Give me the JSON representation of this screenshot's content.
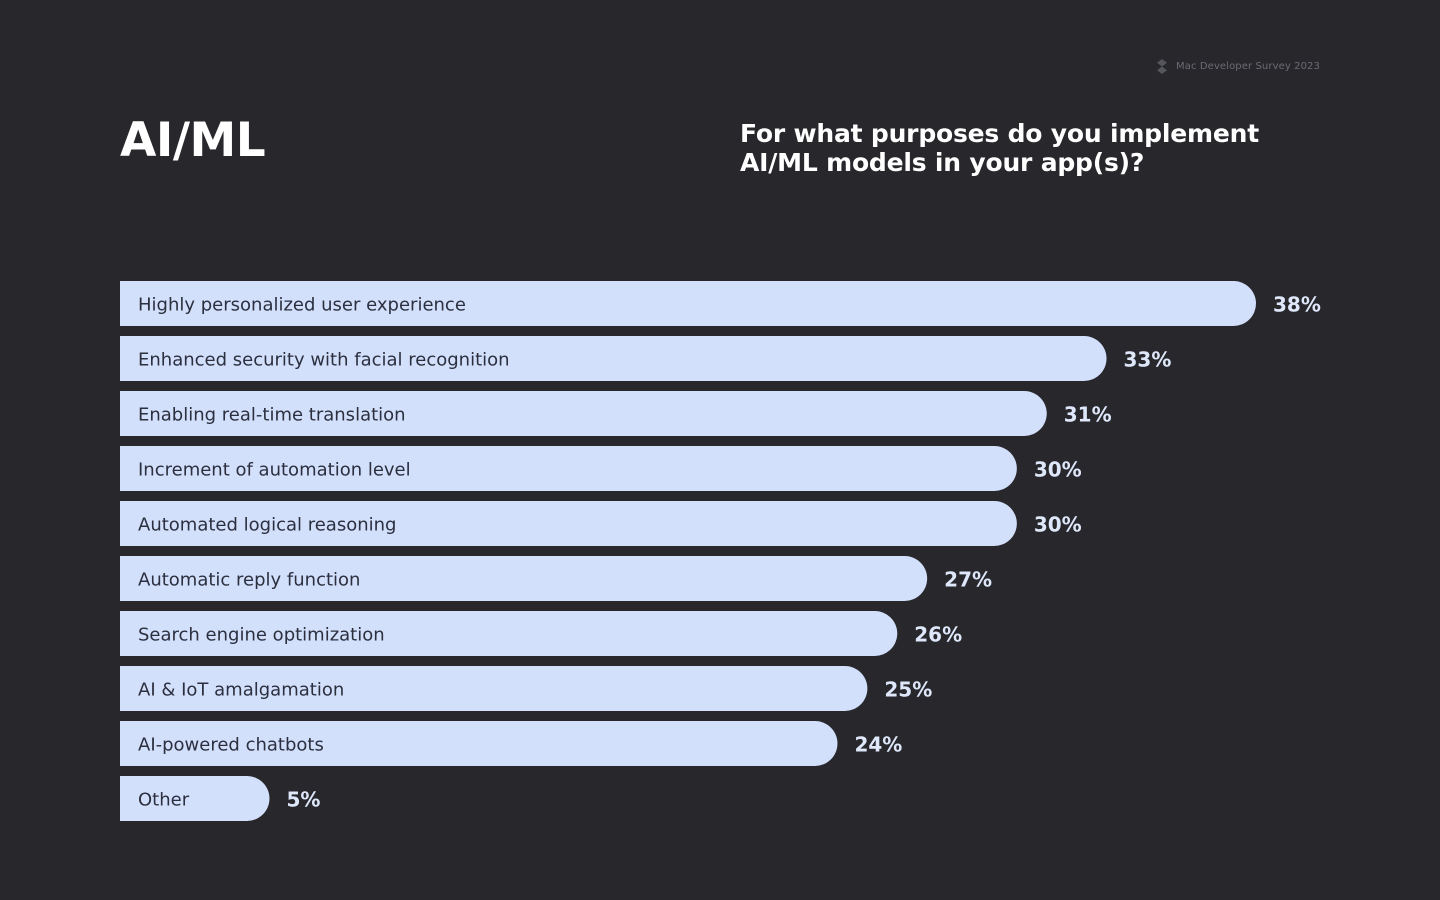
{
  "brand": {
    "text": "Mac Developer Survey 2023",
    "icon": "survey-logo-icon"
  },
  "section_title": "AI/ML",
  "question": "For what purposes do you implement AI/ML models in your app(s)?",
  "colors": {
    "background": "#27272c",
    "bar": "#d3e0fc",
    "bar_text": "#2b2f3e",
    "value_text": "#dfe8fb"
  },
  "chart_data": {
    "type": "bar",
    "orientation": "horizontal",
    "title": "For what purposes do you implement AI/ML models in your app(s)?",
    "xlabel": "",
    "ylabel": "",
    "xlim": [
      0,
      38
    ],
    "unit": "%",
    "grid": false,
    "categories": [
      "Highly personalized user experience",
      "Enhanced security with facial recognition",
      "Enabling real-time translation",
      "Increment of automation level",
      "Automated logical reasoning",
      "Automatic reply function",
      "Search engine optimization",
      "AI & IoT amalgamation",
      "AI-powered chatbots",
      "Other"
    ],
    "values": [
      38,
      33,
      31,
      30,
      30,
      27,
      26,
      25,
      24,
      5
    ],
    "value_labels": [
      "38%",
      "33%",
      "31%",
      "30%",
      "30%",
      "27%",
      "26%",
      "25%",
      "24%",
      "5%"
    ]
  }
}
